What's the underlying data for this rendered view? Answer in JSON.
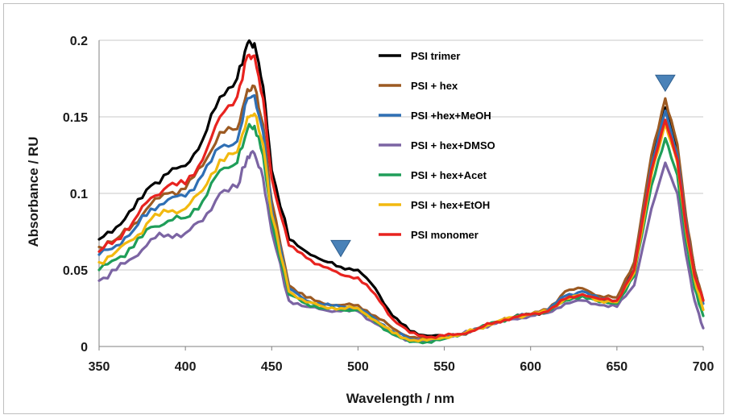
{
  "chart_data": {
    "type": "line",
    "xlabel": "Wavelength / nm",
    "ylabel": "Absorbance / RU",
    "xlim": [
      350,
      700
    ],
    "ylim": [
      0,
      0.2
    ],
    "x_ticks": [
      "350",
      "400",
      "450",
      "500",
      "550",
      "600",
      "650",
      "700"
    ],
    "y_ticks": [
      "0",
      "0.05",
      "0.1",
      "0.15",
      "0.2"
    ],
    "grid": "horizontal",
    "legend_position": "inside, center-right",
    "markers": [
      {
        "shape": "triangle-down",
        "x": 490,
        "y": 0.064,
        "color": "#4a82b8"
      },
      {
        "shape": "triangle-down",
        "x": 678,
        "y": 0.172,
        "color": "#4a82b8"
      }
    ],
    "series": [
      {
        "name": "PSI trimer",
        "color": "#000000",
        "points": [
          [
            350,
            0.07
          ],
          [
            360,
            0.078
          ],
          [
            370,
            0.09
          ],
          [
            380,
            0.105
          ],
          [
            390,
            0.113
          ],
          [
            400,
            0.118
          ],
          [
            410,
            0.135
          ],
          [
            420,
            0.163
          ],
          [
            430,
            0.175
          ],
          [
            436,
            0.198
          ],
          [
            440,
            0.198
          ],
          [
            445,
            0.17
          ],
          [
            450,
            0.115
          ],
          [
            460,
            0.07
          ],
          [
            470,
            0.062
          ],
          [
            480,
            0.056
          ],
          [
            490,
            0.052
          ],
          [
            500,
            0.05
          ],
          [
            510,
            0.038
          ],
          [
            520,
            0.02
          ],
          [
            530,
            0.01
          ],
          [
            540,
            0.007
          ],
          [
            550,
            0.007
          ],
          [
            560,
            0.008
          ],
          [
            570,
            0.012
          ],
          [
            580,
            0.016
          ],
          [
            590,
            0.019
          ],
          [
            600,
            0.021
          ],
          [
            610,
            0.023
          ],
          [
            620,
            0.03
          ],
          [
            630,
            0.034
          ],
          [
            640,
            0.031
          ],
          [
            650,
            0.03
          ],
          [
            660,
            0.05
          ],
          [
            670,
            0.12
          ],
          [
            678,
            0.156
          ],
          [
            685,
            0.128
          ],
          [
            690,
            0.08
          ],
          [
            695,
            0.05
          ],
          [
            700,
            0.03
          ]
        ]
      },
      {
        "name": "PSI + hex",
        "color": "#9c5a22",
        "points": [
          [
            350,
            0.065
          ],
          [
            360,
            0.07
          ],
          [
            370,
            0.08
          ],
          [
            380,
            0.093
          ],
          [
            390,
            0.1
          ],
          [
            400,
            0.103
          ],
          [
            410,
            0.118
          ],
          [
            420,
            0.14
          ],
          [
            430,
            0.142
          ],
          [
            436,
            0.168
          ],
          [
            440,
            0.17
          ],
          [
            445,
            0.145
          ],
          [
            450,
            0.095
          ],
          [
            460,
            0.04
          ],
          [
            470,
            0.032
          ],
          [
            480,
            0.028
          ],
          [
            490,
            0.027
          ],
          [
            500,
            0.027
          ],
          [
            510,
            0.02
          ],
          [
            520,
            0.012
          ],
          [
            530,
            0.006
          ],
          [
            540,
            0.005
          ],
          [
            550,
            0.006
          ],
          [
            560,
            0.008
          ],
          [
            570,
            0.012
          ],
          [
            580,
            0.016
          ],
          [
            590,
            0.019
          ],
          [
            600,
            0.021
          ],
          [
            610,
            0.024
          ],
          [
            620,
            0.036
          ],
          [
            630,
            0.038
          ],
          [
            640,
            0.033
          ],
          [
            650,
            0.032
          ],
          [
            660,
            0.055
          ],
          [
            670,
            0.125
          ],
          [
            678,
            0.162
          ],
          [
            685,
            0.132
          ],
          [
            690,
            0.085
          ],
          [
            695,
            0.05
          ],
          [
            700,
            0.03
          ]
        ]
      },
      {
        "name": "PSI +hex+MeOH",
        "color": "#2f6fb4",
        "points": [
          [
            350,
            0.06
          ],
          [
            360,
            0.066
          ],
          [
            370,
            0.076
          ],
          [
            380,
            0.09
          ],
          [
            390,
            0.096
          ],
          [
            400,
            0.098
          ],
          [
            410,
            0.112
          ],
          [
            420,
            0.13
          ],
          [
            430,
            0.134
          ],
          [
            436,
            0.162
          ],
          [
            440,
            0.164
          ],
          [
            445,
            0.14
          ],
          [
            450,
            0.09
          ],
          [
            460,
            0.038
          ],
          [
            470,
            0.03
          ],
          [
            480,
            0.027
          ],
          [
            490,
            0.026
          ],
          [
            500,
            0.025
          ],
          [
            510,
            0.018
          ],
          [
            520,
            0.01
          ],
          [
            530,
            0.005
          ],
          [
            540,
            0.004
          ],
          [
            550,
            0.006
          ],
          [
            560,
            0.008
          ],
          [
            570,
            0.012
          ],
          [
            580,
            0.016
          ],
          [
            590,
            0.019
          ],
          [
            600,
            0.021
          ],
          [
            610,
            0.024
          ],
          [
            620,
            0.033
          ],
          [
            630,
            0.036
          ],
          [
            640,
            0.031
          ],
          [
            650,
            0.03
          ],
          [
            660,
            0.05
          ],
          [
            670,
            0.118
          ],
          [
            678,
            0.154
          ],
          [
            685,
            0.125
          ],
          [
            690,
            0.08
          ],
          [
            695,
            0.046
          ],
          [
            700,
            0.028
          ]
        ]
      },
      {
        "name": "PSI + hex+DMSO",
        "color": "#7b64a3",
        "points": [
          [
            350,
            0.043
          ],
          [
            360,
            0.05
          ],
          [
            370,
            0.058
          ],
          [
            380,
            0.07
          ],
          [
            390,
            0.073
          ],
          [
            400,
            0.074
          ],
          [
            410,
            0.082
          ],
          [
            420,
            0.1
          ],
          [
            430,
            0.104
          ],
          [
            436,
            0.124
          ],
          [
            440,
            0.126
          ],
          [
            445,
            0.11
          ],
          [
            450,
            0.075
          ],
          [
            460,
            0.03
          ],
          [
            470,
            0.026
          ],
          [
            480,
            0.024
          ],
          [
            490,
            0.023
          ],
          [
            500,
            0.023
          ],
          [
            510,
            0.015
          ],
          [
            520,
            0.008
          ],
          [
            530,
            0.004
          ],
          [
            540,
            0.004
          ],
          [
            550,
            0.006
          ],
          [
            560,
            0.008
          ],
          [
            570,
            0.012
          ],
          [
            580,
            0.015
          ],
          [
            590,
            0.018
          ],
          [
            600,
            0.02
          ],
          [
            610,
            0.022
          ],
          [
            620,
            0.028
          ],
          [
            630,
            0.03
          ],
          [
            640,
            0.027
          ],
          [
            650,
            0.026
          ],
          [
            660,
            0.04
          ],
          [
            670,
            0.09
          ],
          [
            678,
            0.12
          ],
          [
            685,
            0.1
          ],
          [
            690,
            0.06
          ],
          [
            695,
            0.03
          ],
          [
            700,
            0.012
          ]
        ]
      },
      {
        "name": "PSI + hex+Acet",
        "color": "#1f9e59",
        "points": [
          [
            350,
            0.05
          ],
          [
            360,
            0.057
          ],
          [
            370,
            0.065
          ],
          [
            380,
            0.078
          ],
          [
            390,
            0.082
          ],
          [
            400,
            0.084
          ],
          [
            410,
            0.095
          ],
          [
            420,
            0.115
          ],
          [
            430,
            0.12
          ],
          [
            436,
            0.142
          ],
          [
            440,
            0.144
          ],
          [
            445,
            0.125
          ],
          [
            450,
            0.082
          ],
          [
            460,
            0.034
          ],
          [
            470,
            0.028
          ],
          [
            480,
            0.025
          ],
          [
            490,
            0.024
          ],
          [
            500,
            0.024
          ],
          [
            510,
            0.016
          ],
          [
            520,
            0.008
          ],
          [
            530,
            0.003
          ],
          [
            540,
            0.003
          ],
          [
            550,
            0.005
          ],
          [
            560,
            0.008
          ],
          [
            570,
            0.012
          ],
          [
            580,
            0.016
          ],
          [
            590,
            0.019
          ],
          [
            600,
            0.021
          ],
          [
            610,
            0.023
          ],
          [
            620,
            0.03
          ],
          [
            630,
            0.033
          ],
          [
            640,
            0.029
          ],
          [
            650,
            0.028
          ],
          [
            660,
            0.046
          ],
          [
            670,
            0.105
          ],
          [
            678,
            0.136
          ],
          [
            685,
            0.112
          ],
          [
            690,
            0.07
          ],
          [
            695,
            0.038
          ],
          [
            700,
            0.02
          ]
        ]
      },
      {
        "name": "PSI + hex+EtOH",
        "color": "#f2b90f",
        "points": [
          [
            350,
            0.055
          ],
          [
            360,
            0.062
          ],
          [
            370,
            0.07
          ],
          [
            380,
            0.083
          ],
          [
            390,
            0.088
          ],
          [
            400,
            0.09
          ],
          [
            410,
            0.102
          ],
          [
            420,
            0.122
          ],
          [
            430,
            0.127
          ],
          [
            436,
            0.15
          ],
          [
            440,
            0.152
          ],
          [
            445,
            0.132
          ],
          [
            450,
            0.086
          ],
          [
            460,
            0.036
          ],
          [
            470,
            0.029
          ],
          [
            480,
            0.026
          ],
          [
            490,
            0.025
          ],
          [
            500,
            0.025
          ],
          [
            510,
            0.017
          ],
          [
            520,
            0.009
          ],
          [
            530,
            0.004
          ],
          [
            540,
            0.004
          ],
          [
            550,
            0.006
          ],
          [
            560,
            0.008
          ],
          [
            570,
            0.012
          ],
          [
            580,
            0.016
          ],
          [
            590,
            0.019
          ],
          [
            600,
            0.021
          ],
          [
            610,
            0.023
          ],
          [
            620,
            0.031
          ],
          [
            630,
            0.034
          ],
          [
            640,
            0.03
          ],
          [
            650,
            0.029
          ],
          [
            660,
            0.048
          ],
          [
            670,
            0.112
          ],
          [
            678,
            0.146
          ],
          [
            685,
            0.12
          ],
          [
            690,
            0.076
          ],
          [
            695,
            0.044
          ],
          [
            700,
            0.024
          ]
        ]
      },
      {
        "name": "PSI monomer",
        "color": "#e8231f",
        "points": [
          [
            350,
            0.062
          ],
          [
            360,
            0.07
          ],
          [
            370,
            0.082
          ],
          [
            380,
            0.097
          ],
          [
            390,
            0.105
          ],
          [
            400,
            0.106
          ],
          [
            410,
            0.122
          ],
          [
            420,
            0.15
          ],
          [
            430,
            0.163
          ],
          [
            436,
            0.19
          ],
          [
            440,
            0.19
          ],
          [
            445,
            0.162
          ],
          [
            450,
            0.11
          ],
          [
            460,
            0.066
          ],
          [
            470,
            0.058
          ],
          [
            480,
            0.052
          ],
          [
            490,
            0.047
          ],
          [
            500,
            0.045
          ],
          [
            510,
            0.034
          ],
          [
            520,
            0.018
          ],
          [
            530,
            0.009
          ],
          [
            540,
            0.006
          ],
          [
            550,
            0.007
          ],
          [
            560,
            0.008
          ],
          [
            570,
            0.012
          ],
          [
            580,
            0.016
          ],
          [
            590,
            0.019
          ],
          [
            600,
            0.021
          ],
          [
            610,
            0.023
          ],
          [
            620,
            0.031
          ],
          [
            630,
            0.034
          ],
          [
            640,
            0.031
          ],
          [
            650,
            0.03
          ],
          [
            660,
            0.05
          ],
          [
            670,
            0.115
          ],
          [
            678,
            0.148
          ],
          [
            685,
            0.122
          ],
          [
            690,
            0.078
          ],
          [
            695,
            0.046
          ],
          [
            700,
            0.03
          ]
        ]
      }
    ]
  }
}
